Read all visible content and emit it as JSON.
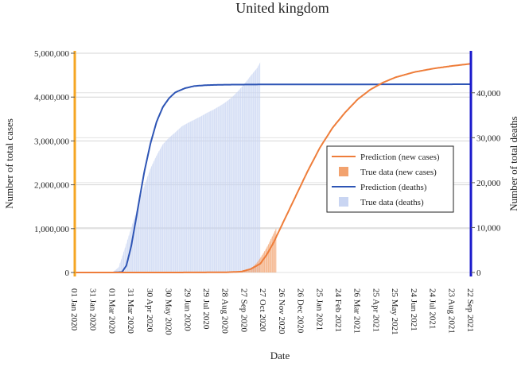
{
  "chart_data": {
    "type": "line",
    "title": "United kingdom",
    "xlabel": "Date",
    "ylabel_left": "Number of total cases",
    "ylabel_right": "Number of total deaths",
    "x_ticks": [
      "01 Jan 2020",
      "31 Jan 2020",
      "01 Mar 2020",
      "31 Mar 2020",
      "30 Apr 2020",
      "30 May 2020",
      "29 Jun 2020",
      "29 Jul 2020",
      "28 Aug 2020",
      "27 Sep 2020",
      "27 Oct 2020",
      "26 Nov 2020",
      "26 Dec 2020",
      "25 Jan 2021",
      "24 Feb 2021",
      "26 Mar 2021",
      "25 Apr 2021",
      "25 May 2021",
      "24 Jun 2021",
      "24 Jul 2021",
      "23 Aug 2021",
      "22 Sep 2021"
    ],
    "x_tick_days": [
      0,
      30,
      60,
      90,
      120,
      150,
      180,
      210,
      240,
      270,
      300,
      330,
      360,
      390,
      420,
      450,
      480,
      510,
      540,
      570,
      600,
      630
    ],
    "xlim_days": [
      0,
      630
    ],
    "left_axis": {
      "ylim": [
        0,
        5000000
      ],
      "ticks": [
        0,
        1000000,
        2000000,
        3000000,
        4000000,
        5000000
      ],
      "tick_labels": [
        "0",
        "1,000,000",
        "2,000,000",
        "3,000,000",
        "4,000,000",
        "5,000,000"
      ],
      "color": "#f5a623"
    },
    "right_axis": {
      "ylim": [
        0,
        48800
      ],
      "ticks": [
        0,
        10000,
        20000,
        30000,
        40000
      ],
      "tick_labels": [
        "0",
        "10,000",
        "20,000",
        "30,000",
        "40,000"
      ],
      "color": "#1a1acc"
    },
    "series": [
      {
        "name": "Prediction (new cases)",
        "kind": "line",
        "axis": "left",
        "color": "#ee7d3a",
        "points": [
          [
            0,
            0
          ],
          [
            90,
            0
          ],
          [
            150,
            0
          ],
          [
            200,
            2000
          ],
          [
            240,
            5000
          ],
          [
            265,
            20000
          ],
          [
            280,
            80000
          ],
          [
            295,
            200000
          ],
          [
            305,
            400000
          ],
          [
            315,
            650000
          ],
          [
            325,
            950000
          ],
          [
            340,
            1400000
          ],
          [
            355,
            1850000
          ],
          [
            370,
            2300000
          ],
          [
            390,
            2850000
          ],
          [
            410,
            3300000
          ],
          [
            430,
            3650000
          ],
          [
            450,
            3950000
          ],
          [
            470,
            4170000
          ],
          [
            490,
            4330000
          ],
          [
            510,
            4450000
          ],
          [
            540,
            4570000
          ],
          [
            570,
            4650000
          ],
          [
            600,
            4710000
          ],
          [
            630,
            4760000
          ]
        ]
      },
      {
        "name": "True data (new cases)",
        "kind": "bar",
        "axis": "left",
        "color": "#f2a26e",
        "points": [
          [
            260,
            15000
          ],
          [
            270,
            40000
          ],
          [
            280,
            100000
          ],
          [
            285,
            150000
          ],
          [
            290,
            230000
          ],
          [
            295,
            330000
          ],
          [
            300,
            440000
          ],
          [
            305,
            560000
          ],
          [
            310,
            700000
          ],
          [
            315,
            850000
          ],
          [
            320,
            1000000
          ]
        ]
      },
      {
        "name": "Prediction (deaths)",
        "kind": "line",
        "axis": "right",
        "color": "#2e55b5",
        "points": [
          [
            0,
            0
          ],
          [
            60,
            0
          ],
          [
            75,
            100
          ],
          [
            82,
            1500
          ],
          [
            90,
            6000
          ],
          [
            100,
            14000
          ],
          [
            110,
            22000
          ],
          [
            120,
            28500
          ],
          [
            130,
            33500
          ],
          [
            140,
            36800
          ],
          [
            150,
            38800
          ],
          [
            160,
            40100
          ],
          [
            175,
            41000
          ],
          [
            190,
            41500
          ],
          [
            210,
            41700
          ],
          [
            240,
            41800
          ],
          [
            300,
            41850
          ],
          [
            630,
            41900
          ]
        ]
      },
      {
        "name": "True data (deaths)",
        "kind": "bar",
        "axis": "right",
        "color": "#c9d5f2",
        "points": [
          [
            60,
            0
          ],
          [
            70,
            1200
          ],
          [
            80,
            5500
          ],
          [
            90,
            10000
          ],
          [
            100,
            14500
          ],
          [
            110,
            19000
          ],
          [
            120,
            23000
          ],
          [
            130,
            26000
          ],
          [
            140,
            28500
          ],
          [
            150,
            30000
          ],
          [
            160,
            31200
          ],
          [
            170,
            32500
          ],
          [
            180,
            33300
          ],
          [
            190,
            34000
          ],
          [
            200,
            34700
          ],
          [
            210,
            35500
          ],
          [
            220,
            36200
          ],
          [
            230,
            37000
          ],
          [
            240,
            37900
          ],
          [
            250,
            39000
          ],
          [
            260,
            40400
          ],
          [
            270,
            42000
          ],
          [
            280,
            43800
          ],
          [
            290,
            45500
          ],
          [
            295,
            46800
          ]
        ]
      }
    ],
    "legend": {
      "placement": "center-right",
      "items": [
        {
          "label": "Prediction (new cases)",
          "swatch": "line",
          "color": "#ee7d3a"
        },
        {
          "label": "True data (new cases)",
          "swatch": "square",
          "color": "#f2a26e"
        },
        {
          "label": "Prediction (deaths)",
          "swatch": "line",
          "color": "#2e55b5"
        },
        {
          "label": "True data (deaths)",
          "swatch": "square",
          "color": "#c9d5f2"
        }
      ]
    },
    "grid": true
  }
}
